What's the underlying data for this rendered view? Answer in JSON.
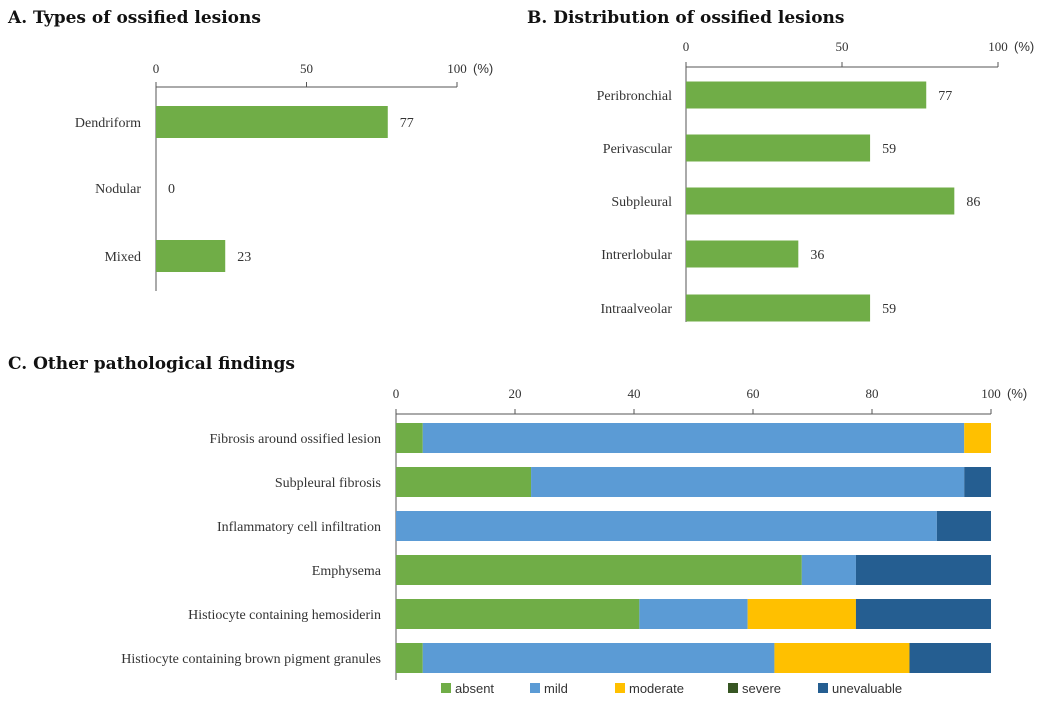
{
  "chart_data": [
    {
      "type": "bar",
      "orientation": "horizontal",
      "title": "A. Types of ossified lesions",
      "unit": "(%)",
      "xlim": [
        0,
        100
      ],
      "ticks": [
        "0",
        "50",
        "100"
      ],
      "categories": [
        "Dendriform",
        "Nodular",
        "Mixed"
      ],
      "values": [
        77,
        0,
        23
      ],
      "value_labels": [
        "77",
        "0",
        "23"
      ],
      "color": "#70ad47"
    },
    {
      "type": "bar",
      "orientation": "horizontal",
      "title": "B. Distribution  of ossified lesions",
      "unit": "(%)",
      "xlim": [
        0,
        100
      ],
      "ticks": [
        "0",
        "50",
        "100"
      ],
      "categories": [
        "Peribronchial",
        "Perivascular",
        "Subpleural",
        "Intrerlobular",
        "Intraalveolar"
      ],
      "values": [
        77,
        59,
        86,
        36,
        59
      ],
      "value_labels": [
        "77",
        "59",
        "86",
        "36",
        "59"
      ],
      "color": "#70ad47"
    },
    {
      "type": "bar",
      "orientation": "horizontal",
      "stacked": true,
      "title": "C. Other pathological  findings",
      "unit": "(%)",
      "xlim": [
        0,
        100
      ],
      "ticks": [
        "0",
        "20",
        "40",
        "60",
        "80",
        "100"
      ],
      "categories": [
        "Fibrosis around ossified lesion",
        "Subpleural fibrosis",
        "Inflammatory cell infiltration",
        "Emphysema",
        "Histiocyte containing hemosiderin",
        "Histiocyte containing brown pigment granules"
      ],
      "legend_position": "bottom",
      "series": [
        {
          "name": "absent",
          "color": "#70ad47",
          "values": [
            4.5,
            22.7,
            0,
            68.2,
            40.9,
            4.5
          ]
        },
        {
          "name": "mild",
          "color": "#5b9bd5",
          "values": [
            91,
            72.8,
            90.9,
            9.1,
            18.2,
            59.1
          ]
        },
        {
          "name": "moderate",
          "color": "#ffc000",
          "values": [
            4.5,
            0,
            0,
            0,
            18.2,
            22.7
          ]
        },
        {
          "name": "severe",
          "color": "#375623",
          "values": [
            0,
            0,
            0,
            0,
            0,
            0
          ]
        },
        {
          "name": "unevaluable",
          "color": "#255e91",
          "values": [
            0,
            4.5,
            9.1,
            22.7,
            22.7,
            13.7
          ]
        }
      ]
    }
  ]
}
